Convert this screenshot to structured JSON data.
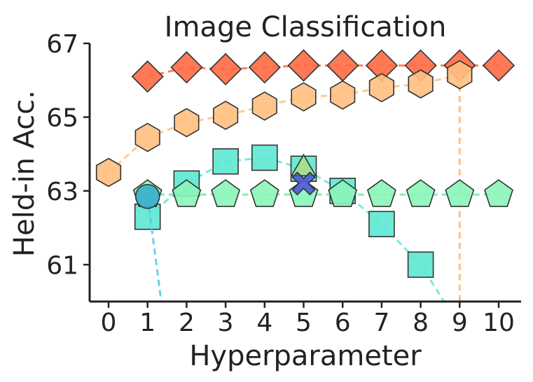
{
  "chart_data": {
    "type": "scatter",
    "title": "Image Classification",
    "xlabel": "Hyperparameter",
    "ylabel": "Held-in Acc.",
    "xlim": [
      -0.5,
      10.5
    ],
    "ylim": [
      60,
      67
    ],
    "xticks": [
      "0",
      "1",
      "2",
      "3",
      "4",
      "5",
      "6",
      "7",
      "8",
      "9",
      "10"
    ],
    "yticks": [
      "61",
      "63",
      "65",
      "67"
    ],
    "grid": false,
    "legend": "none",
    "series": [
      {
        "marker": "diamond",
        "color": "#ff6a45",
        "line_color": "#ff6a45",
        "x": [
          1,
          2,
          3,
          4,
          5,
          6,
          7,
          8,
          9,
          10
        ],
        "y": [
          66.1,
          66.35,
          66.3,
          66.35,
          66.4,
          66.4,
          66.4,
          66.4,
          66.4,
          66.4
        ]
      },
      {
        "marker": "hexagon",
        "color": "#ffbf80",
        "line_color": "#ffbf80",
        "x": [
          0,
          1,
          2,
          3,
          4,
          5,
          6,
          7,
          8,
          9
        ],
        "y": [
          63.5,
          64.45,
          64.85,
          65.05,
          65.3,
          65.55,
          65.6,
          65.8,
          65.9,
          66.15
        ],
        "drop": {
          "from": 9,
          "y_to": 60
        }
      },
      {
        "marker": "square",
        "color": "#5de8d2",
        "line_color": "#5de8d2",
        "x": [
          1,
          2,
          3,
          4,
          5,
          6,
          7,
          8
        ],
        "y": [
          62.3,
          63.2,
          63.8,
          63.9,
          63.6,
          63.0,
          62.1,
          61.0
        ],
        "tail": {
          "x": 8.6,
          "y": 60
        }
      },
      {
        "marker": "pentagon",
        "color": "#8af5b8",
        "line_color": "#6fe8b0",
        "x": [
          1,
          2,
          3,
          4,
          5,
          6,
          7,
          8,
          9,
          10
        ],
        "y": [
          62.9,
          62.9,
          62.9,
          62.9,
          62.9,
          62.9,
          62.9,
          62.9,
          62.9,
          62.9
        ]
      },
      {
        "marker": "circle",
        "color": "#3aaecc",
        "line_color": "#4cc9e8",
        "x": [
          1
        ],
        "y": [
          62.85
        ],
        "tail": {
          "x": 1.35,
          "y": 60
        }
      },
      {
        "marker": "triangle",
        "color": "#a8e08a",
        "line_color": "#a8e08a",
        "x": [
          5
        ],
        "y": [
          63.6
        ]
      },
      {
        "marker": "x",
        "color": "#4d5ad8",
        "line_color": "#4d5ad8",
        "x": [
          5
        ],
        "y": [
          63.2
        ]
      }
    ]
  }
}
